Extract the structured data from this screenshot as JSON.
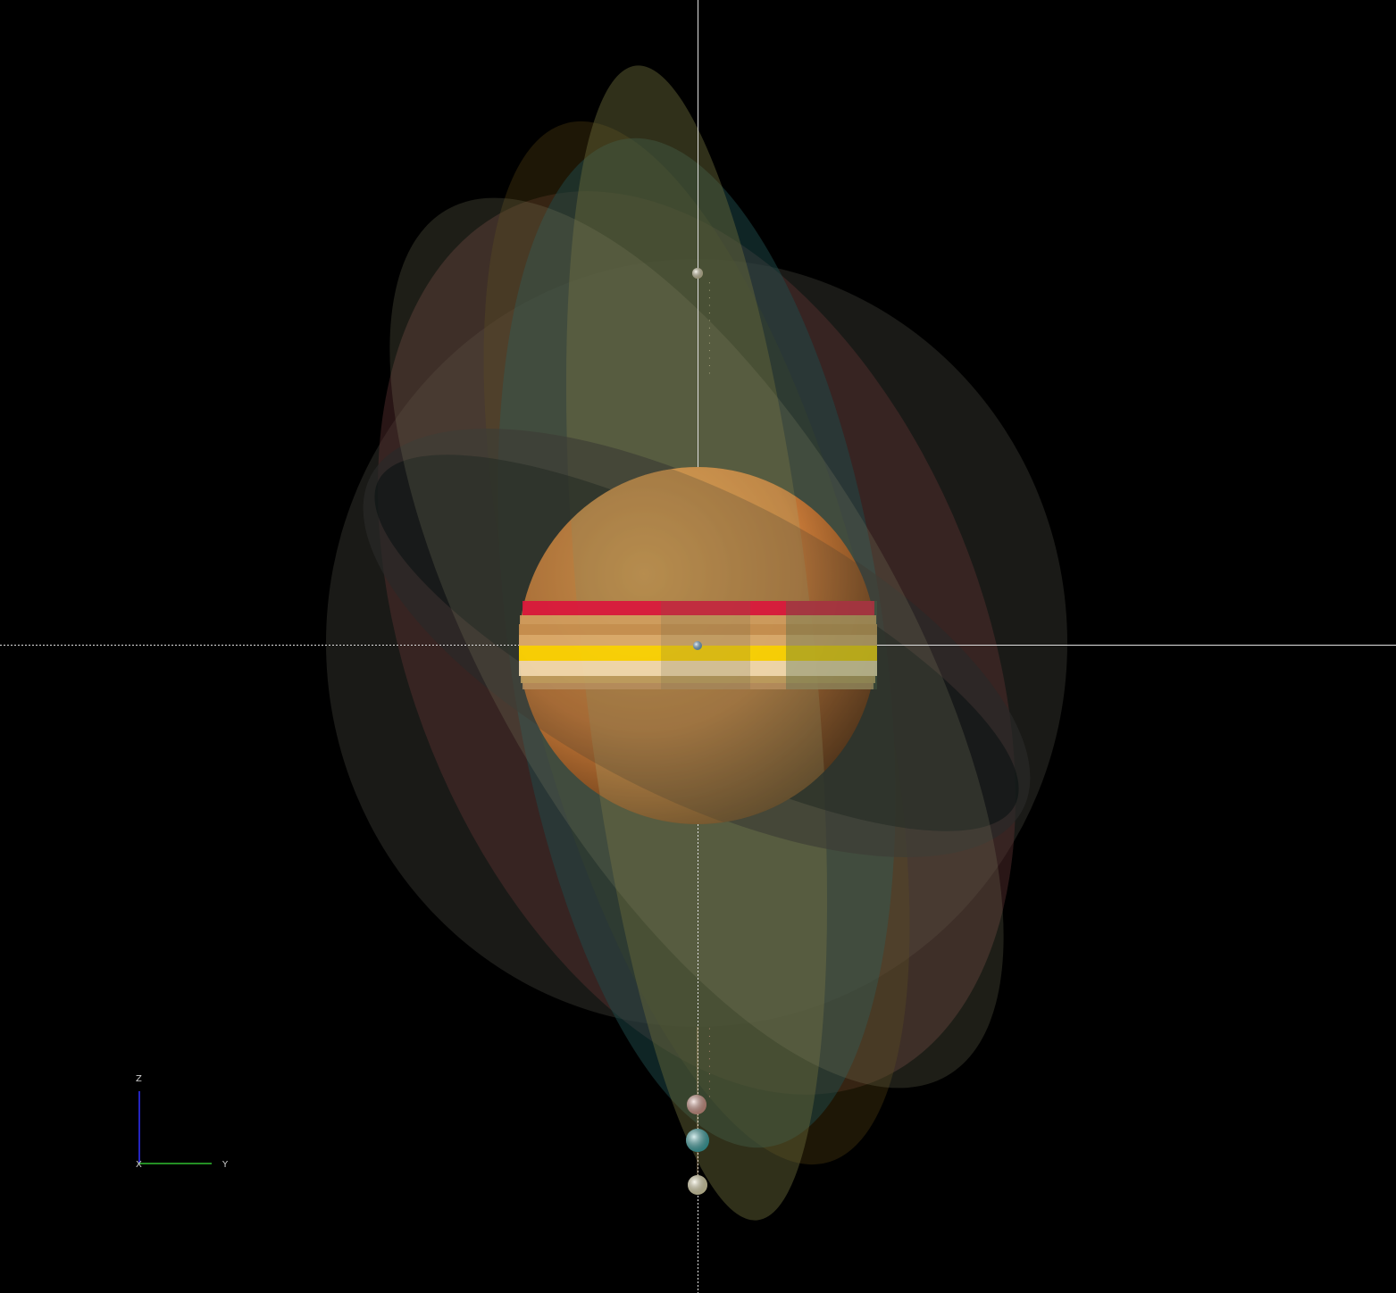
{
  "viewer": {
    "background": "#000000",
    "axis_gizmo": {
      "z_label": "Z",
      "x_label": "X",
      "y_label": "Y",
      "z_color": "#3030ff",
      "y_color": "#30c030",
      "x_color": "#ff3030"
    }
  },
  "scene": {
    "central_body_color": "#e8963c",
    "band_colors": [
      "#dc143c",
      "#d49a5a",
      "#ffd700",
      "#f5deb3",
      "#c0a060"
    ],
    "moons": [
      {
        "name": "top-moon",
        "color": "#d8d0a8"
      },
      {
        "name": "center-moon",
        "color": "#7ab0d8"
      },
      {
        "name": "pink-moon",
        "color": "#e0a090"
      },
      {
        "name": "teal-moon",
        "color": "#40b0b0"
      },
      {
        "name": "cream-moon",
        "color": "#f0e8b8"
      }
    ],
    "orbit_colors": [
      "#3a3a3a",
      "#5a3a3a",
      "#4a4a3a",
      "#2a4a4a",
      "#3a2a1a"
    ]
  }
}
